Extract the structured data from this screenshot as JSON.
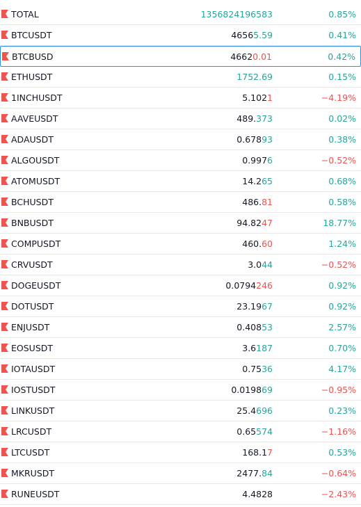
{
  "colors": {
    "up": "#26a69a",
    "down": "#ef5350",
    "neutral": "#131722",
    "flag": "#f05350",
    "selection_border": "#2e8fe0",
    "divider": "#e7e9ee"
  },
  "watchlist": {
    "selected_symbol": "BTCBUSD",
    "rows": [
      {
        "symbol": "TOTAL",
        "flag_icon": "flag-icon",
        "price_plain": "",
        "price_changed": "1356824196583",
        "price_dir": "up",
        "change": "0.85%",
        "change_dir": "up"
      },
      {
        "symbol": "BTCUSDT",
        "flag_icon": "flag-icon",
        "price_plain": "4656",
        "price_changed": "5.59",
        "price_dir": "up",
        "change": "0.41%",
        "change_dir": "up"
      },
      {
        "symbol": "BTCBUSD",
        "flag_icon": "flag-icon",
        "price_plain": "4662",
        "price_changed": "0.01",
        "price_dir": "down",
        "change": "0.42%",
        "change_dir": "up"
      },
      {
        "symbol": "ETHUSDT",
        "flag_icon": "flag-icon",
        "price_plain": "",
        "price_changed": "1752.69",
        "price_dir": "up",
        "change": "0.15%",
        "change_dir": "up"
      },
      {
        "symbol": "1INCHUSDT",
        "flag_icon": "flag-icon",
        "price_plain": "5.102",
        "price_changed": "1",
        "price_dir": "down",
        "change": "−4.19%",
        "change_dir": "down"
      },
      {
        "symbol": "AAVEUSDT",
        "flag_icon": "flag-icon",
        "price_plain": "489.",
        "price_changed": "373",
        "price_dir": "up",
        "change": "0.02%",
        "change_dir": "up"
      },
      {
        "symbol": "ADAUSDT",
        "flag_icon": "flag-icon",
        "price_plain": "0.678",
        "price_changed": "93",
        "price_dir": "up",
        "change": "0.38%",
        "change_dir": "up"
      },
      {
        "symbol": "ALGOUSDT",
        "flag_icon": "flag-icon",
        "price_plain": "0.997",
        "price_changed": "6",
        "price_dir": "up",
        "change": "−0.52%",
        "change_dir": "down"
      },
      {
        "symbol": "ATOMUSDT",
        "flag_icon": "flag-icon",
        "price_plain": "14.2",
        "price_changed": "65",
        "price_dir": "up",
        "change": "0.68%",
        "change_dir": "up"
      },
      {
        "symbol": "BCHUSDT",
        "flag_icon": "flag-icon",
        "price_plain": "486.",
        "price_changed": "81",
        "price_dir": "down",
        "change": "0.58%",
        "change_dir": "up"
      },
      {
        "symbol": "BNBUSDT",
        "flag_icon": "flag-icon",
        "price_plain": "94.82",
        "price_changed": "47",
        "price_dir": "down",
        "change": "18.77%",
        "change_dir": "up"
      },
      {
        "symbol": "COMPUSDT",
        "flag_icon": "flag-icon",
        "price_plain": "460.",
        "price_changed": "60",
        "price_dir": "down",
        "change": "1.24%",
        "change_dir": "up"
      },
      {
        "symbol": "CRVUSDT",
        "flag_icon": "flag-icon",
        "price_plain": "3.0",
        "price_changed": "44",
        "price_dir": "up",
        "change": "−0.52%",
        "change_dir": "down"
      },
      {
        "symbol": "DOGEUSDT",
        "flag_icon": "flag-icon",
        "price_plain": "0.0794",
        "price_changed": "246",
        "price_dir": "down",
        "change": "0.92%",
        "change_dir": "up"
      },
      {
        "symbol": "DOTUSDT",
        "flag_icon": "flag-icon",
        "price_plain": "23.19",
        "price_changed": "67",
        "price_dir": "up",
        "change": "0.92%",
        "change_dir": "up"
      },
      {
        "symbol": "ENJUSDT",
        "flag_icon": "flag-icon",
        "price_plain": "0.408",
        "price_changed": "53",
        "price_dir": "up",
        "change": "2.57%",
        "change_dir": "up"
      },
      {
        "symbol": "EOSUSDT",
        "flag_icon": "flag-icon",
        "price_plain": "3.6",
        "price_changed": "187",
        "price_dir": "up",
        "change": "0.70%",
        "change_dir": "up"
      },
      {
        "symbol": "IOTAUSDT",
        "flag_icon": "flag-icon",
        "price_plain": "0.75",
        "price_changed": "36",
        "price_dir": "up",
        "change": "4.17%",
        "change_dir": "up"
      },
      {
        "symbol": "IOSTUSDT",
        "flag_icon": "flag-icon",
        "price_plain": "0.0198",
        "price_changed": "69",
        "price_dir": "up",
        "change": "−0.95%",
        "change_dir": "down"
      },
      {
        "symbol": "LINKUSDT",
        "flag_icon": "flag-icon",
        "price_plain": "25.4",
        "price_changed": "696",
        "price_dir": "up",
        "change": "0.23%",
        "change_dir": "up"
      },
      {
        "symbol": "LRCUSDT",
        "flag_icon": "flag-icon",
        "price_plain": "0.65",
        "price_changed": "574",
        "price_dir": "up",
        "change": "−1.16%",
        "change_dir": "down"
      },
      {
        "symbol": "LTCUSDT",
        "flag_icon": "flag-icon",
        "price_plain": "168.1",
        "price_changed": "7",
        "price_dir": "down",
        "change": "0.53%",
        "change_dir": "up"
      },
      {
        "symbol": "MKRUSDT",
        "flag_icon": "flag-icon",
        "price_plain": "2477.",
        "price_changed": "84",
        "price_dir": "up",
        "change": "−0.64%",
        "change_dir": "down"
      },
      {
        "symbol": "RUNEUSDT",
        "flag_icon": "flag-icon",
        "price_plain": "4.4828",
        "price_changed": "",
        "price_dir": "up",
        "change": "−2.43%",
        "change_dir": "down"
      }
    ]
  }
}
